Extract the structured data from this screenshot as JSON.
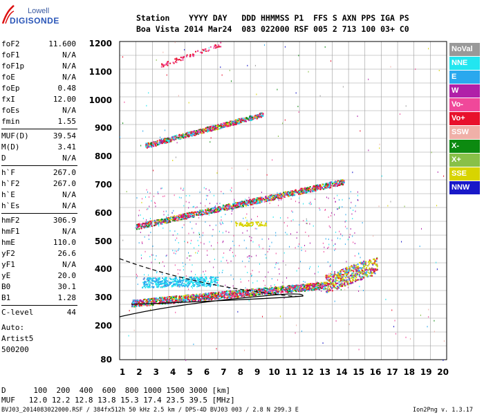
{
  "logo": {
    "top": "Lowell",
    "bottom": "DIGISONDE"
  },
  "header": {
    "line1": "Station    YYYY DAY   DDD HHMMSS P1  FFS S AXN PPS IGA PS",
    "line2": "Boa Vista 2014 Mar24  083 022000 RSF 005 2 713 100 03+ C0"
  },
  "params": [
    {
      "group": [
        {
          "name": "foF2",
          "value": "11.600"
        },
        {
          "name": "foF1",
          "value": "N/A"
        },
        {
          "name": "foF1p",
          "value": "N/A"
        },
        {
          "name": "foE",
          "value": "N/A"
        },
        {
          "name": "foEp",
          "value": "0.48"
        },
        {
          "name": "fxI",
          "value": "12.00"
        },
        {
          "name": "foEs",
          "value": "N/A"
        },
        {
          "name": "fmin",
          "value": "1.55"
        }
      ]
    },
    {
      "group": [
        {
          "name": "MUF(D)",
          "value": "39.54"
        },
        {
          "name": "M(D)",
          "value": "3.41"
        },
        {
          "name": "D",
          "value": "N/A"
        }
      ]
    },
    {
      "group": [
        {
          "name": "h`F",
          "value": "267.0"
        },
        {
          "name": "h`F2",
          "value": "267.0"
        },
        {
          "name": "h`E",
          "value": "N/A"
        },
        {
          "name": "h`Es",
          "value": "N/A"
        }
      ]
    },
    {
      "group": [
        {
          "name": "hmF2",
          "value": "306.9"
        },
        {
          "name": "hmF1",
          "value": "N/A"
        },
        {
          "name": "hmE",
          "value": "110.0"
        },
        {
          "name": "yF2",
          "value": "26.6"
        },
        {
          "name": "yF1",
          "value": "N/A"
        },
        {
          "name": "yE",
          "value": "20.0"
        },
        {
          "name": "B0",
          "value": "30.1"
        },
        {
          "name": "B1",
          "value": "1.28"
        }
      ]
    },
    {
      "group": [
        {
          "name": "C-level",
          "value": "44"
        }
      ]
    }
  ],
  "auto": {
    "line1": "Auto:",
    "line2": "Artist5",
    "line3": "500200"
  },
  "legend": [
    {
      "label": "NoVal",
      "color": "#999999"
    },
    {
      "label": "NNE",
      "color": "#22e6f0"
    },
    {
      "label": "E",
      "color": "#2aa8ee"
    },
    {
      "label": "W",
      "color": "#b020a8"
    },
    {
      "label": "Vo-",
      "color": "#f0489a"
    },
    {
      "label": "Vo+",
      "color": "#e8102c"
    },
    {
      "label": "SSW",
      "color": "#f0b0a8"
    },
    {
      "label": "X-",
      "color": "#0c8a10"
    },
    {
      "label": "X+",
      "color": "#88c048"
    },
    {
      "label": "SSE",
      "color": "#d8d400"
    },
    {
      "label": "NNW",
      "color": "#1818c8"
    }
  ],
  "plot": {
    "y_ticks": [
      "1200",
      "1100",
      "1000",
      "900",
      "800",
      "700",
      "600",
      "500",
      "400",
      "300",
      "200",
      "80"
    ],
    "x_ticks": [
      "1",
      "2",
      "3",
      "4",
      "5",
      "6",
      "7",
      "8",
      "9",
      "10",
      "11",
      "12",
      "13",
      "14",
      "15",
      "16",
      "17",
      "18",
      "19",
      "20"
    ]
  },
  "footer": {
    "line1": "D      100  200  400  600  800 1000 1500 3000 [km]",
    "line2": "MUF   12.0 12.2 12.8 13.8 15.3 17.4 23.5 39.5 [MHz]",
    "line3": "BVJ03_2014083022000.RSF / 384fx512h 50 kHz 2.5 km / DPS-4D BVJ03 003 / 2.8 N 299.3 E",
    "version": "Ion2Png v. 1.3.17"
  }
}
